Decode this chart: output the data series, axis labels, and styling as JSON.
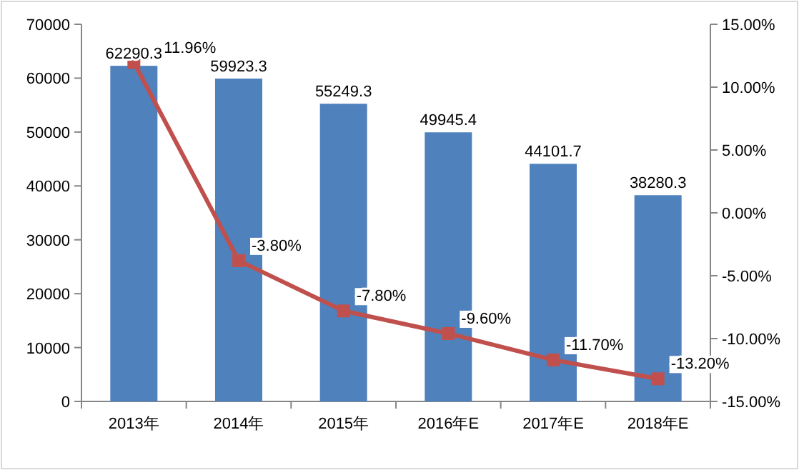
{
  "chart_data": {
    "type": "bar",
    "categories": [
      "2013年",
      "2014年",
      "2015年",
      "2016年E",
      "2017年E",
      "2018年E"
    ],
    "series": [
      {
        "color": "#4f81bd",
        "values": [
          62290.3,
          59923.3,
          55249.3,
          49945.4,
          44101.7,
          38280.3
        ],
        "value_labels": [
          "62290.3",
          "59923.3",
          "55249.3",
          "49945.4",
          "44101.7",
          "38280.3"
        ]
      },
      {
        "type": "line",
        "axis": "y2",
        "color": "#c0504d",
        "marker": "square",
        "line_style": "solid",
        "values": [
          11.96,
          -3.8,
          -7.8,
          -9.6,
          -11.7,
          -13.2
        ],
        "value_labels": [
          "11.96%",
          "-3.80%",
          "-7.80%",
          "-9.60%",
          "-11.70%",
          "-13.20%"
        ]
      }
    ],
    "ylim": [
      0,
      70000
    ],
    "yticks": [
      0,
      10000,
      20000,
      30000,
      40000,
      50000,
      60000,
      70000
    ],
    "y2lim": [
      -15,
      15
    ],
    "y2ticks": [
      {
        "value": -15,
        "label": "-15.00%"
      },
      {
        "value": -10,
        "label": "-10.00%"
      },
      {
        "value": -5,
        "label": "-5.00%"
      },
      {
        "value": 0,
        "label": "0.00%"
      },
      {
        "value": 5,
        "label": "5.00%"
      },
      {
        "value": 10,
        "label": "10.00%"
      },
      {
        "value": 15,
        "label": "15.00%"
      }
    ],
    "grid": false,
    "legend": false
  }
}
